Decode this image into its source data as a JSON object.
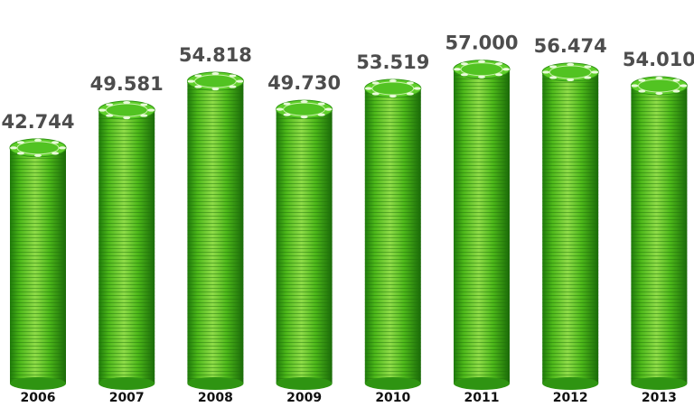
{
  "chart_data": {
    "type": "bar",
    "categories": [
      "2006",
      "2007",
      "2008",
      "2009",
      "2010",
      "2011",
      "2012",
      "2013"
    ],
    "values": [
      42744,
      49581,
      54818,
      49730,
      53519,
      57000,
      56474,
      54010
    ],
    "value_labels": [
      "42.744",
      "49.581",
      "54.818",
      "49.730",
      "53.519",
      "57.000",
      "56.474",
      "54.010"
    ],
    "title": "",
    "xlabel": "",
    "ylabel": "",
    "colors": {
      "bar_light": "#8fdc48",
      "bar_mid": "#4db81a",
      "bar_dark": "#1e7a0a",
      "top_face": "#5fcf2a"
    },
    "mark_style": "stacked-poker-chips"
  }
}
